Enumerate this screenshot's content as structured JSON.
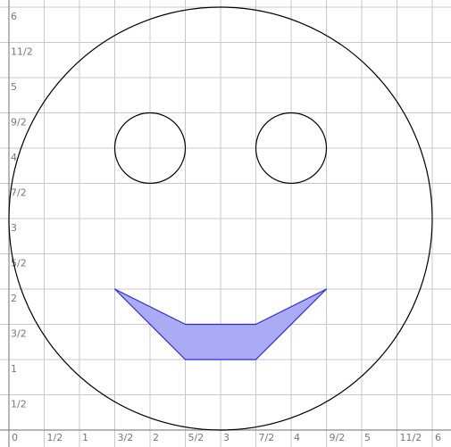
{
  "axes": {
    "x_range": [
      0,
      6
    ],
    "y_range": [
      0,
      6
    ],
    "step": 0.5,
    "x_tick_labels": [
      "0",
      "1/2",
      "1",
      "3/2",
      "2",
      "5/2",
      "3",
      "7/2",
      "4",
      "9/2",
      "5",
      "11/2",
      "6"
    ],
    "y_tick_labels": [
      "1/2",
      "1",
      "3/2",
      "2",
      "5/2",
      "3",
      "7/2",
      "4",
      "9/2",
      "5",
      "11/2",
      "6"
    ],
    "grid": true
  },
  "figure": {
    "face": {
      "cx": 3,
      "cy": 3,
      "r": 3
    },
    "left_eye": {
      "cx": 2,
      "cy": 4,
      "r": 0.5
    },
    "right_eye": {
      "cx": 4,
      "cy": 4,
      "r": 0.5
    },
    "mouth": {
      "points": [
        [
          1.5,
          2
        ],
        [
          2.5,
          1.5
        ],
        [
          3.5,
          1.5
        ],
        [
          4.5,
          2
        ],
        [
          3.5,
          1
        ],
        [
          2.5,
          1
        ]
      ],
      "fill": "#aaaaf5",
      "stroke": "#2b2bdc"
    }
  }
}
